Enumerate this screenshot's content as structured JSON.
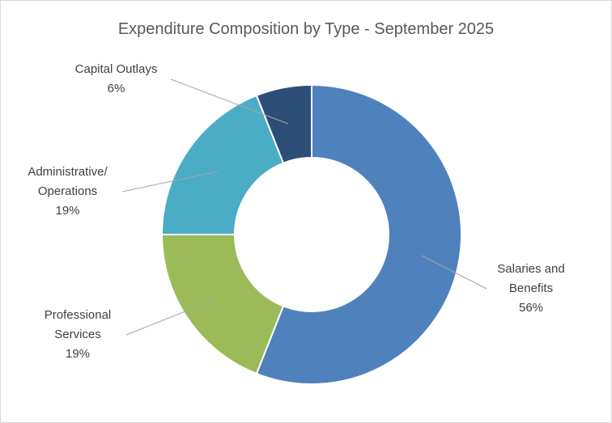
{
  "chart_data": {
    "type": "donut",
    "title": "Expenditure Composition by Type - September 2025",
    "categories": [
      "Salaries and Benefits",
      "Professional Services",
      "Administrative/ Operations",
      "Capital Outlays"
    ],
    "values": [
      56,
      19,
      19,
      6
    ],
    "value_labels": [
      "56%",
      "19%",
      "19%",
      "6%"
    ],
    "colors": [
      "#4f81bd",
      "#9bbb59",
      "#4bacc6",
      "#2c4d75"
    ]
  }
}
